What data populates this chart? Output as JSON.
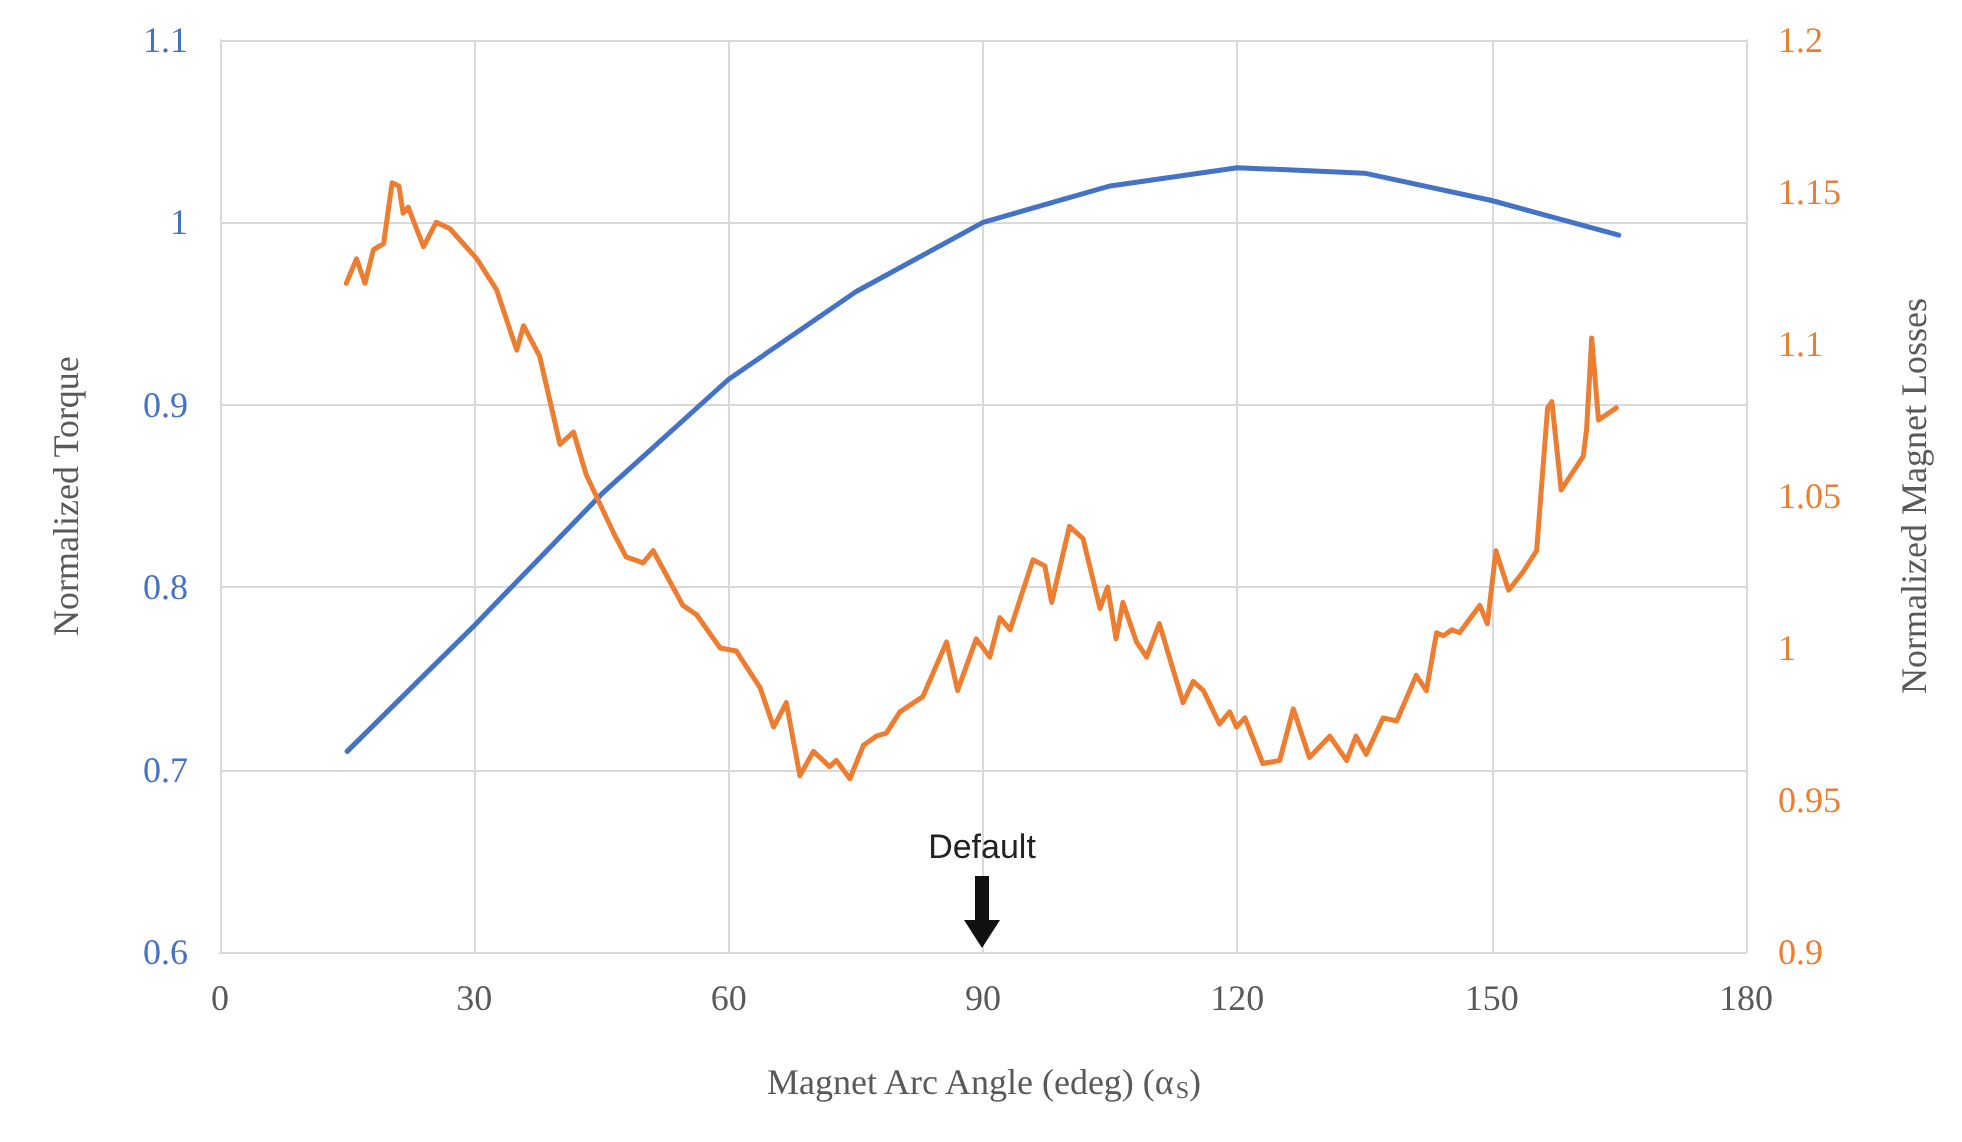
{
  "chart_data": {
    "type": "line",
    "xlabel": "Magnet Arc Angle (edeg) (α$_{S}$)",
    "ylabel": "Normalized Torque",
    "y2label": "Normalized Magnet Losses",
    "xlim": [
      0,
      180
    ],
    "xticks": [
      0,
      30,
      60,
      90,
      120,
      150,
      180
    ],
    "ylim": [
      0.6,
      1.1
    ],
    "yticks": [
      0.6,
      0.7,
      0.8,
      0.9,
      1,
      1.1
    ],
    "y2lim": [
      0.9,
      1.2
    ],
    "y2ticks": [
      0.9,
      0.95,
      1,
      1.05,
      1.1,
      1.15,
      1.2
    ],
    "grid": true,
    "annotations": [
      "Default"
    ],
    "series": [
      {
        "color": "#4472c4",
        "x": [
          15,
          30,
          45,
          60,
          75,
          90,
          105,
          120,
          135,
          150,
          165
        ],
        "values": [
          0.71,
          0.779,
          0.851,
          0.914,
          0.962,
          1.0,
          1.02,
          1.03,
          1.027,
          1.012,
          0.993
        ]
      },
      {
        "color": "#ed7d31",
        "axis": "y2",
        "x": [
          14.9,
          16.1,
          17.1,
          18.1,
          19.3,
          20.3,
          21.1,
          21.6,
          22.2,
          24.0,
          25.5,
          27.1,
          30.3,
          32.6,
          35.0,
          35.8,
          37.7,
          40.1,
          41.7,
          43.2,
          46.4,
          47.9,
          49.9,
          51.1,
          54.6,
          56.2,
          59.0,
          60.9,
          63.7,
          65.3,
          66.8,
          68.4,
          70.0,
          71.9,
          72.7,
          74.3,
          75.9,
          77.4,
          78.6,
          80.2,
          82.9,
          85.7,
          87.0,
          89.2,
          90.8,
          92.0,
          93.2,
          95.9,
          97.3,
          98.1,
          100.2,
          101.8,
          103.8,
          104.7,
          105.7,
          106.5,
          108.1,
          109.3,
          110.8,
          113.6,
          114.8,
          116.0,
          117.9,
          119.1,
          119.9,
          120.9,
          123.0,
          125.0,
          126.6,
          128.5,
          130.9,
          132.9,
          134.0,
          135.2,
          137.2,
          138.8,
          141.1,
          142.3,
          143.5,
          144.3,
          145.3,
          146.2,
          148.6,
          149.5,
          150.5,
          152.0,
          153.7,
          155.3,
          156.6,
          157.1,
          158.2,
          160.8,
          161.2,
          161.8,
          162.6,
          164.7
        ],
        "values": [
          1.12,
          1.128,
          1.12,
          1.131,
          1.133,
          1.153,
          1.152,
          1.143,
          1.145,
          1.132,
          1.14,
          1.138,
          1.128,
          1.118,
          1.098,
          1.106,
          1.096,
          1.067,
          1.071,
          1.057,
          1.038,
          1.03,
          1.028,
          1.032,
          1.014,
          1.011,
          1.0,
          0.999,
          0.987,
          0.974,
          0.982,
          0.958,
          0.966,
          0.961,
          0.963,
          0.957,
          0.968,
          0.971,
          0.972,
          0.979,
          0.984,
          1.002,
          0.986,
          1.003,
          0.997,
          1.01,
          1.006,
          1.029,
          1.027,
          1.015,
          1.04,
          1.036,
          1.013,
          1.02,
          1.003,
          1.015,
          1.002,
          0.997,
          1.008,
          0.982,
          0.989,
          0.986,
          0.975,
          0.979,
          0.974,
          0.977,
          0.962,
          0.963,
          0.98,
          0.964,
          0.971,
          0.963,
          0.971,
          0.965,
          0.977,
          0.976,
          0.991,
          0.986,
          1.005,
          1.004,
          1.006,
          1.005,
          1.014,
          1.008,
          1.032,
          1.019,
          1.025,
          1.032,
          1.079,
          1.081,
          1.052,
          1.063,
          1.072,
          1.102,
          1.075,
          1.079
        ]
      }
    ]
  }
}
